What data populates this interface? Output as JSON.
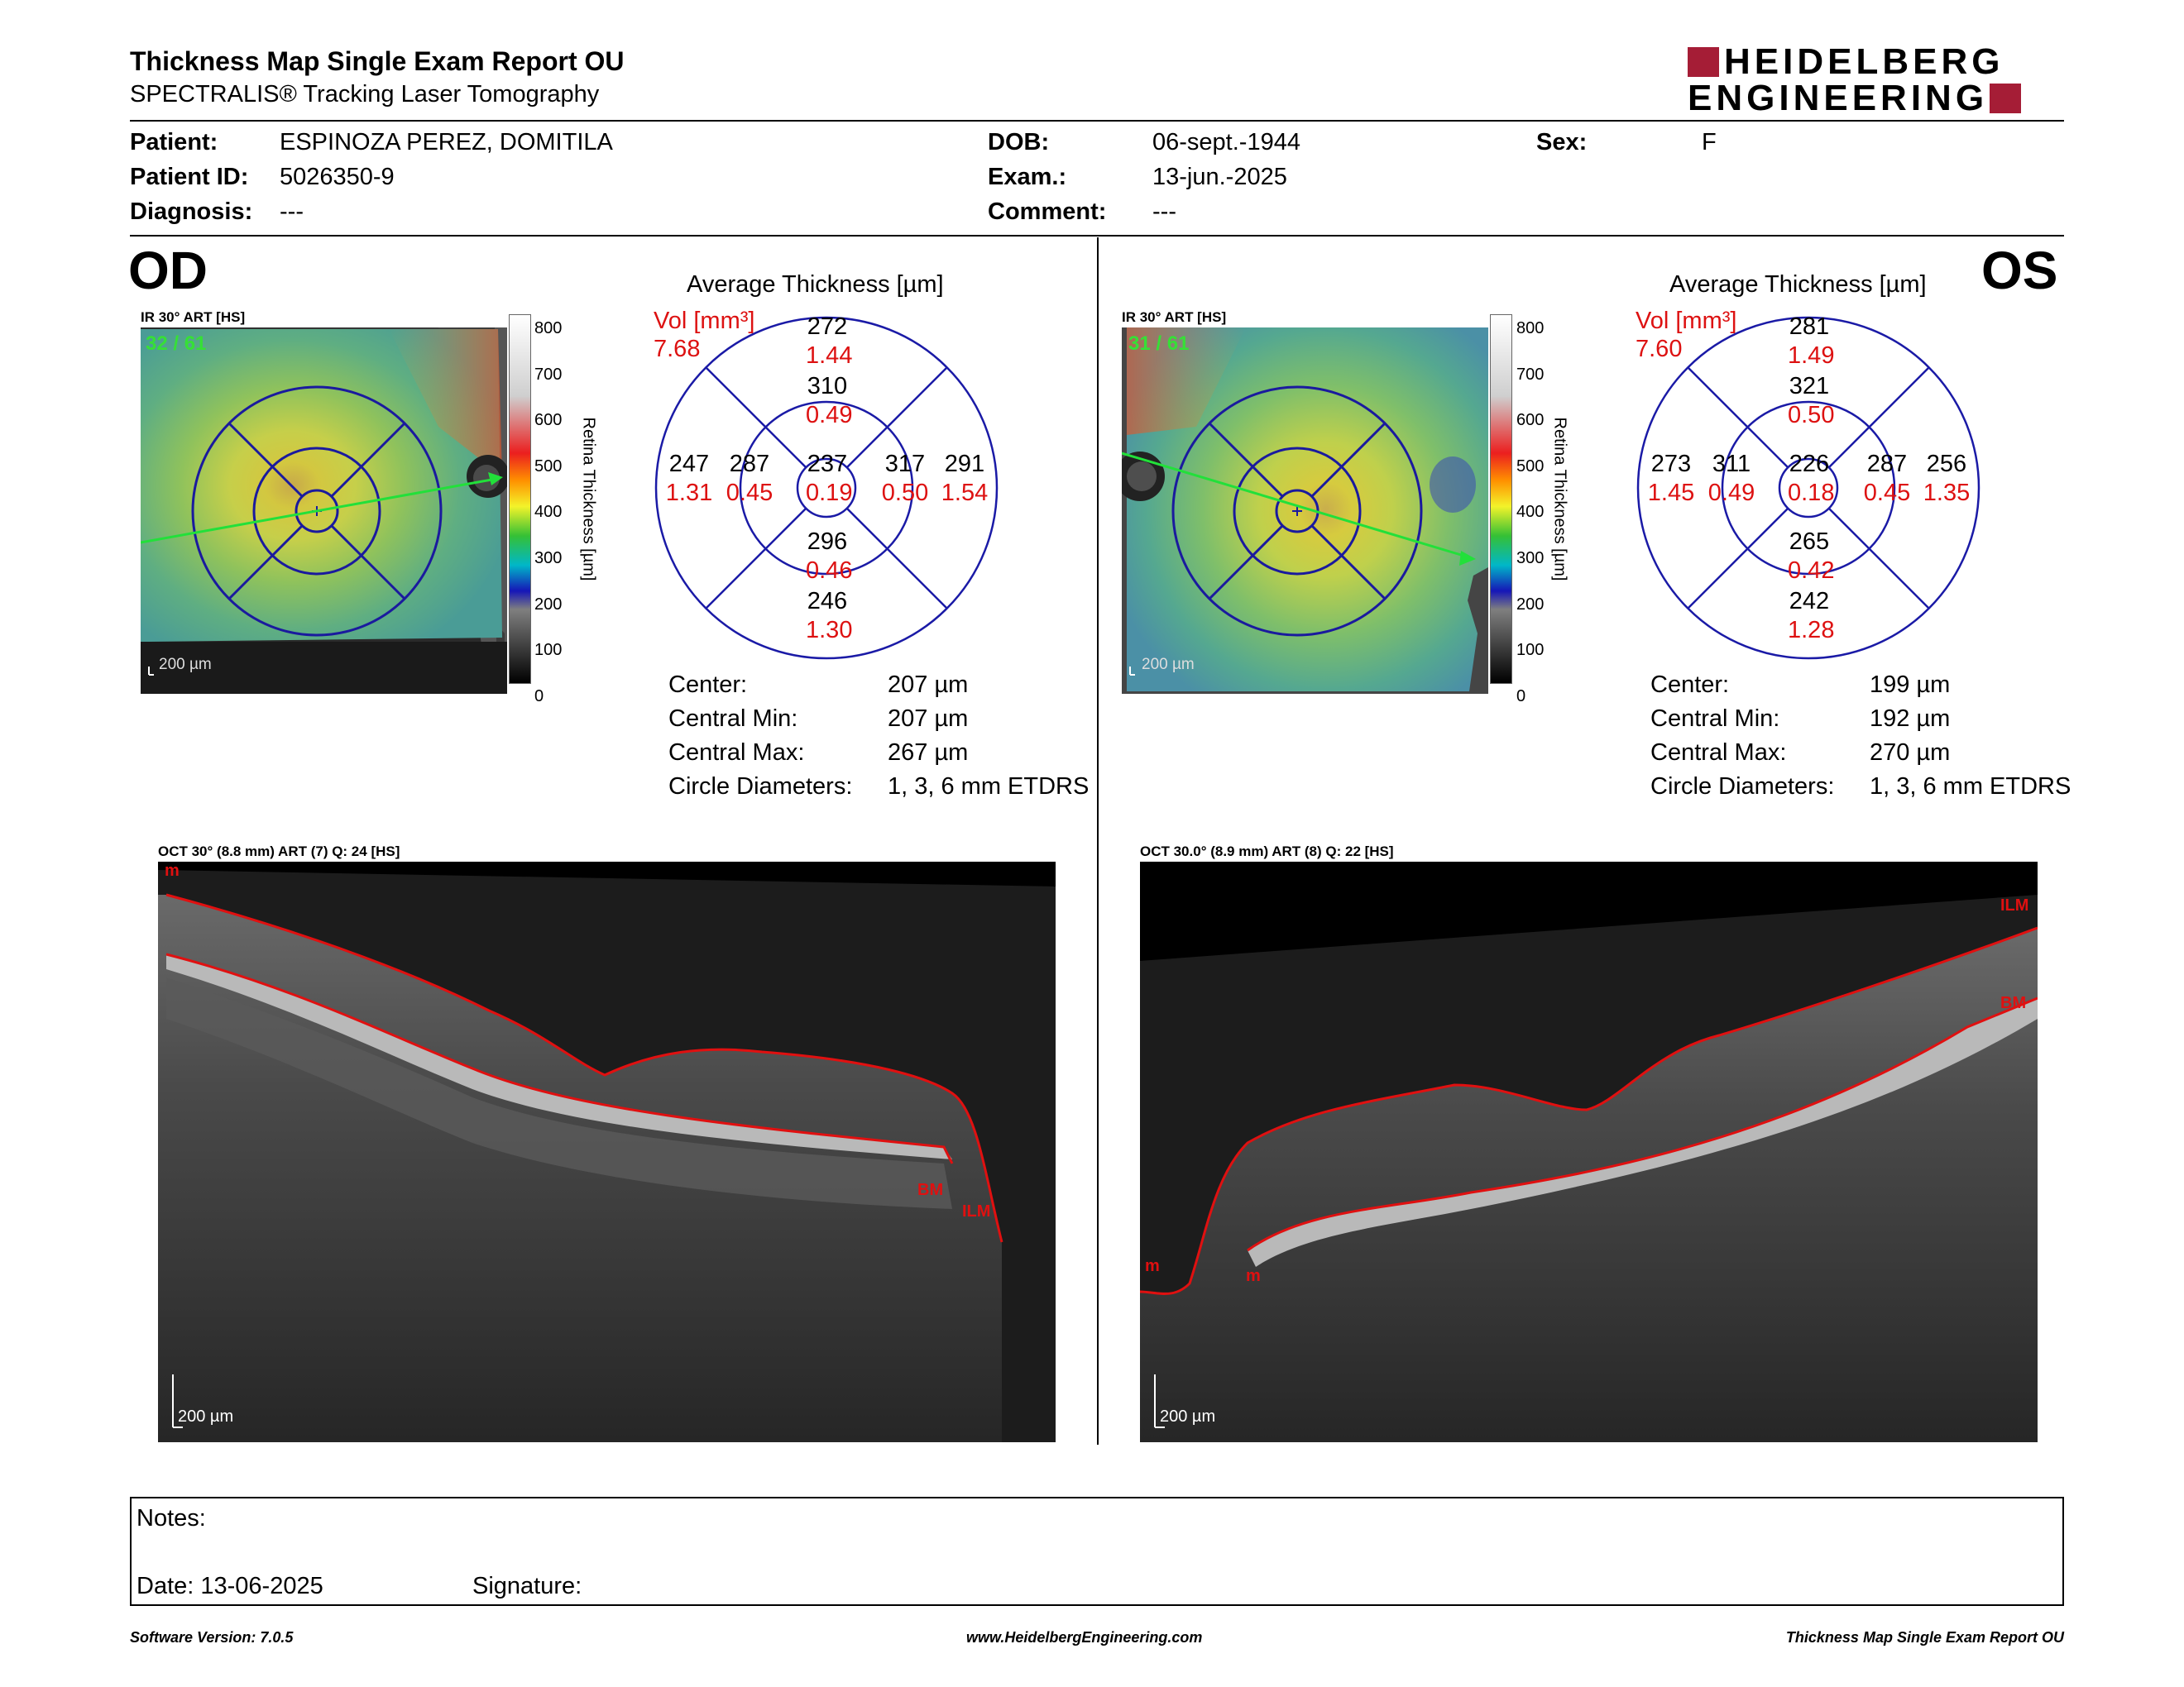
{
  "header": {
    "title": "Thickness Map Single Exam Report OU",
    "subtitle": "SPECTRALIS® Tracking Laser Tomography",
    "logo_line1": "HEIDELBERG",
    "logo_line2": "ENGINEERING",
    "logo_color": "#a51d36"
  },
  "patient": {
    "patient_label": "Patient:",
    "patient_value": "ESPINOZA PEREZ, DOMITILA",
    "id_label": "Patient ID:",
    "id_value": "5026350-9",
    "diagnosis_label": "Diagnosis:",
    "diagnosis_value": "---",
    "dob_label": "DOB:",
    "dob_value": "06-sept.-1944",
    "exam_label": "Exam.:",
    "exam_value": "13-jun.-2025",
    "comment_label": "Comment:",
    "comment_value": "---",
    "sex_label": "Sex:",
    "sex_value": "F"
  },
  "scale": {
    "ticks": [
      "800",
      "700",
      "600",
      "500",
      "400",
      "300",
      "200",
      "100",
      "0"
    ],
    "label": "Retina  Thickness [µm]"
  },
  "od": {
    "eye": "OD",
    "ir_label": "IR 30° ART [HS]",
    "frames": "32 / 61",
    "scalebar": "200 µm",
    "grid_title": "Average Thickness [µm]",
    "vol_label": "Vol [mm³]",
    "vol_total": "7.68",
    "grid": {
      "center": {
        "t": "237",
        "v": "0.19"
      },
      "inner_top": {
        "t": "310",
        "v": "0.49"
      },
      "inner_bottom": {
        "t": "296",
        "v": "0.46"
      },
      "inner_left": {
        "t": "287",
        "v": "0.45"
      },
      "inner_right": {
        "t": "317",
        "v": "0.50"
      },
      "outer_top": {
        "t": "272",
        "v": "1.44"
      },
      "outer_bottom": {
        "t": "246",
        "v": "1.30"
      },
      "outer_left": {
        "t": "247",
        "v": "1.31"
      },
      "outer_right": {
        "t": "291",
        "v": "1.54"
      }
    },
    "stats": [
      {
        "label": "Center:",
        "value": "207 µm"
      },
      {
        "label": "Central Min:",
        "value": "207 µm"
      },
      {
        "label": "Central Max:",
        "value": "267 µm"
      },
      {
        "label": "Circle Diameters:",
        "value": "1, 3, 6 mm ETDRS"
      }
    ],
    "oct_label": "OCT 30° (8.8 mm) ART (7) Q: 24 [HS]",
    "oct_scalebar": "200 µm",
    "layer_m": "m",
    "layer_bm": "BM",
    "layer_ilm": "ILM"
  },
  "os": {
    "eye": "OS",
    "ir_label": "IR 30° ART [HS]",
    "frames": "31 / 61",
    "scalebar": "200 µm",
    "grid_title": "Average Thickness [µm]",
    "vol_label": "Vol [mm³]",
    "vol_total": "7.60",
    "grid": {
      "center": {
        "t": "226",
        "v": "0.18"
      },
      "inner_top": {
        "t": "321",
        "v": "0.50"
      },
      "inner_bottom": {
        "t": "265",
        "v": "0.42"
      },
      "inner_left": {
        "t": "311",
        "v": "0.49"
      },
      "inner_right": {
        "t": "287",
        "v": "0.45"
      },
      "outer_top": {
        "t": "281",
        "v": "1.49"
      },
      "outer_bottom": {
        "t": "242",
        "v": "1.28"
      },
      "outer_left": {
        "t": "273",
        "v": "1.45"
      },
      "outer_right": {
        "t": "256",
        "v": "1.35"
      }
    },
    "stats": [
      {
        "label": "Center:",
        "value": "199 µm"
      },
      {
        "label": "Central Min:",
        "value": "192 µm"
      },
      {
        "label": "Central Max:",
        "value": "270 µm"
      },
      {
        "label": "Circle Diameters:",
        "value": "1, 3, 6 mm ETDRS"
      }
    ],
    "oct_label": "OCT 30.0° (8.9 mm) ART (8) Q: 22 [HS]",
    "oct_scalebar": "200 µm",
    "layer_m": "m",
    "layer_m2": "m",
    "layer_bm": "BM",
    "layer_ilm": "ILM"
  },
  "notes": {
    "notes_label": "Notes:",
    "date_label": "Date: 13-06-2025",
    "signature_label": "Signature:"
  },
  "footer": {
    "left": "Software Version: 7.0.5",
    "center": "www.HeidelbergEngineering.com",
    "right": "Thickness Map Single Exam Report OU"
  }
}
